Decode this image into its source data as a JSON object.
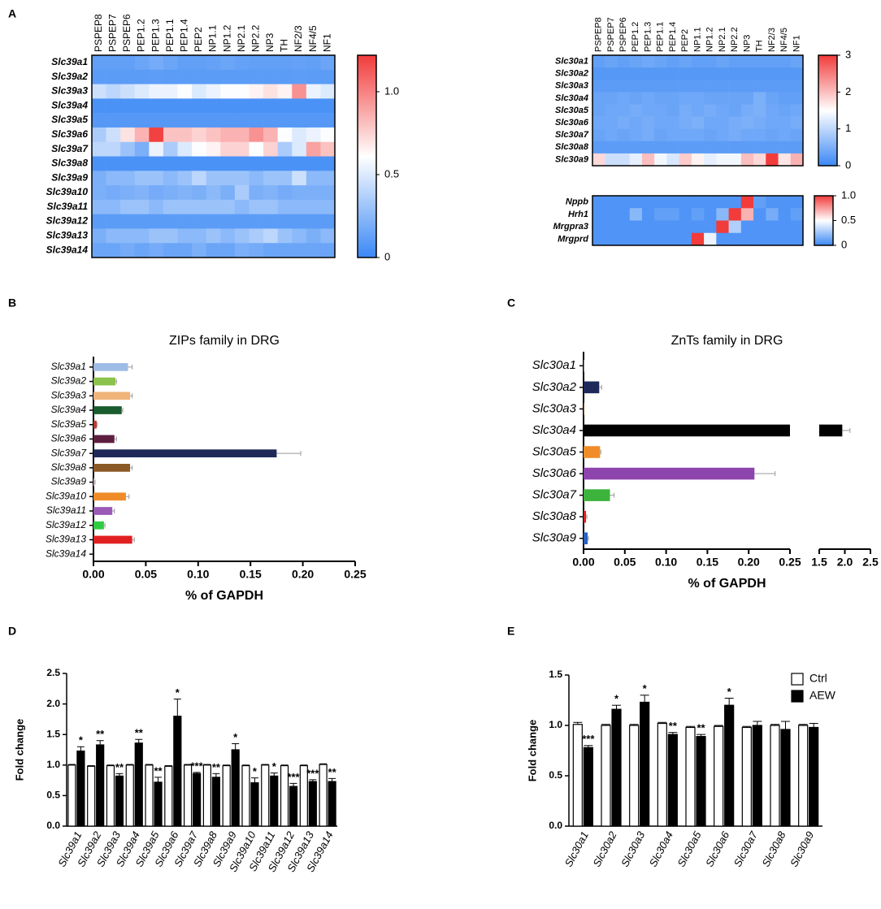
{
  "panel_labels": [
    "A",
    "B",
    "C",
    "D",
    "E"
  ],
  "chart_data": [
    {
      "type": "heatmap",
      "x": [
        "PSPEP8",
        "PSPEP7",
        "PSPEP6",
        "PEP1.2",
        "PEP1.3",
        "PEP1.1",
        "PEP1.4",
        "PEP2",
        "NP1.1",
        "NP1.2",
        "NP2.1",
        "NP2.2",
        "NP3",
        "TH",
        "NF2/3",
        "NF4/5",
        "NF1"
      ],
      "y": [
        "Slc39a1",
        "Slc39a2",
        "Slc39a3",
        "Slc39a4",
        "Slc39a5",
        "Slc39a6",
        "Slc39a7",
        "Slc39a8",
        "Slc39a9",
        "Slc39a10",
        "Slc39a11",
        "Slc39a12",
        "Slc39a13",
        "Slc39a14"
      ],
      "z": [
        [
          0.12,
          0.12,
          0.12,
          0.15,
          0.18,
          0.15,
          0.12,
          0.12,
          0.13,
          0.15,
          0.13,
          0.12,
          0.12,
          0.12,
          0.13,
          0.12,
          0.15
        ],
        [
          0.1,
          0.1,
          0.1,
          0.1,
          0.11,
          0.1,
          0.1,
          0.1,
          0.1,
          0.1,
          0.1,
          0.1,
          0.1,
          0.1,
          0.11,
          0.1,
          0.1
        ],
        [
          0.45,
          0.4,
          0.45,
          0.5,
          0.55,
          0.55,
          0.6,
          0.5,
          0.55,
          0.6,
          0.6,
          0.65,
          0.7,
          0.65,
          0.95,
          0.55,
          0.5
        ],
        [
          0.05,
          0.05,
          0.05,
          0.05,
          0.05,
          0.05,
          0.05,
          0.05,
          0.05,
          0.05,
          0.05,
          0.05,
          0.05,
          0.05,
          0.05,
          0.05,
          0.05
        ],
        [
          0.08,
          0.08,
          0.08,
          0.08,
          0.08,
          0.08,
          0.08,
          0.08,
          0.08,
          0.08,
          0.08,
          0.08,
          0.08,
          0.08,
          0.08,
          0.08,
          0.08
        ],
        [
          0.35,
          0.45,
          0.7,
          0.85,
          1.2,
          0.8,
          0.8,
          0.75,
          0.8,
          0.85,
          0.85,
          0.95,
          0.85,
          0.6,
          0.5,
          0.55,
          0.6
        ],
        [
          0.4,
          0.4,
          0.3,
          0.2,
          0.55,
          0.35,
          0.5,
          0.6,
          0.65,
          0.75,
          0.75,
          0.6,
          0.75,
          0.35,
          0.5,
          0.9,
          0.8
        ],
        [
          0.05,
          0.05,
          0.05,
          0.05,
          0.05,
          0.05,
          0.05,
          0.05,
          0.05,
          0.05,
          0.05,
          0.05,
          0.05,
          0.05,
          0.05,
          0.05,
          0.05
        ],
        [
          0.2,
          0.25,
          0.25,
          0.3,
          0.3,
          0.25,
          0.3,
          0.4,
          0.3,
          0.3,
          0.3,
          0.25,
          0.3,
          0.3,
          0.45,
          0.25,
          0.25
        ],
        [
          0.2,
          0.18,
          0.2,
          0.22,
          0.18,
          0.2,
          0.22,
          0.2,
          0.25,
          0.2,
          0.35,
          0.2,
          0.22,
          0.18,
          0.2,
          0.2,
          0.2
        ],
        [
          0.25,
          0.25,
          0.3,
          0.3,
          0.25,
          0.3,
          0.3,
          0.3,
          0.3,
          0.3,
          0.25,
          0.3,
          0.3,
          0.25,
          0.25,
          0.25,
          0.25
        ],
        [
          0.1,
          0.1,
          0.1,
          0.1,
          0.1,
          0.1,
          0.1,
          0.1,
          0.1,
          0.1,
          0.1,
          0.1,
          0.1,
          0.1,
          0.1,
          0.1,
          0.1
        ],
        [
          0.2,
          0.25,
          0.25,
          0.25,
          0.3,
          0.3,
          0.25,
          0.25,
          0.3,
          0.25,
          0.3,
          0.35,
          0.4,
          0.3,
          0.25,
          0.2,
          0.25
        ],
        [
          0.15,
          0.15,
          0.18,
          0.15,
          0.18,
          0.15,
          0.15,
          0.2,
          0.15,
          0.15,
          0.2,
          0.18,
          0.15,
          0.15,
          0.15,
          0.15,
          0.15
        ]
      ],
      "zlim": [
        0,
        1.22
      ],
      "zticks": [
        0,
        0.5,
        {
          "value": 1,
          "label": "1.0"
        }
      ],
      "colormap": [
        "#3b88f5",
        "#ffffff",
        "#f23b3b"
      ]
    },
    {
      "type": "heatmap",
      "x": [
        "PSPEP8",
        "PSPEP7",
        "PSPEP6",
        "PEP1.2",
        "PEP1.3",
        "PEP1.1",
        "PEP1.4",
        "PEP2",
        "NP1.1",
        "NP1.2",
        "NP2.1",
        "NP2.2",
        "NP3",
        "TH",
        "NF2/3",
        "NF4/5",
        "NF1"
      ],
      "y": [
        "Slc30a1",
        "Slc30a2",
        "Slc30a3",
        "Slc30a4",
        "Slc30a5",
        "Slc30a6",
        "Slc30a7",
        "Slc30a8",
        "Slc30a9"
      ],
      "z": [
        [
          0.3,
          0.35,
          0.3,
          0.35,
          0.4,
          0.35,
          0.3,
          0.35,
          0.3,
          0.3,
          0.35,
          0.3,
          0.3,
          0.3,
          0.3,
          0.3,
          0.35
        ],
        [
          0.2,
          0.2,
          0.2,
          0.2,
          0.2,
          0.2,
          0.2,
          0.2,
          0.2,
          0.2,
          0.2,
          0.2,
          0.2,
          0.2,
          0.2,
          0.2,
          0.2
        ],
        [
          0.25,
          0.25,
          0.25,
          0.25,
          0.25,
          0.25,
          0.25,
          0.25,
          0.25,
          0.25,
          0.25,
          0.25,
          0.25,
          0.25,
          0.25,
          0.25,
          0.25
        ],
        [
          0.35,
          0.35,
          0.4,
          0.35,
          0.4,
          0.35,
          0.35,
          0.4,
          0.4,
          0.35,
          0.35,
          0.35,
          0.35,
          0.5,
          0.35,
          0.3,
          0.3
        ],
        [
          0.35,
          0.4,
          0.4,
          0.45,
          0.4,
          0.4,
          0.35,
          0.45,
          0.4,
          0.45,
          0.4,
          0.35,
          0.45,
          0.5,
          0.4,
          0.35,
          0.4
        ],
        [
          0.4,
          0.4,
          0.45,
          0.4,
          0.45,
          0.4,
          0.4,
          0.45,
          0.5,
          0.4,
          0.4,
          0.45,
          0.5,
          0.45,
          0.4,
          0.4,
          0.45
        ],
        [
          0.35,
          0.4,
          0.35,
          0.4,
          0.45,
          0.35,
          0.4,
          0.4,
          0.4,
          0.35,
          0.4,
          0.45,
          0.4,
          0.4,
          0.35,
          0.4,
          0.35
        ],
        [
          0.25,
          0.25,
          0.25,
          0.25,
          0.25,
          0.25,
          0.25,
          0.25,
          0.25,
          0.25,
          0.25,
          0.25,
          0.25,
          0.25,
          0.25,
          0.25,
          0.25
        ],
        [
          1.8,
          1.1,
          1.1,
          1.3,
          2.0,
          1.4,
          1.2,
          1.9,
          1.6,
          1.3,
          1.4,
          1.4,
          2.0,
          1.8,
          3.0,
          1.7,
          2.1
        ]
      ],
      "zlim": [
        0,
        3
      ],
      "zticks": [
        0,
        1,
        2,
        3
      ],
      "colormap": [
        "#3b88f5",
        "#ffffff",
        "#f23b3b"
      ]
    },
    {
      "type": "heatmap",
      "y": [
        "Nppb",
        "Hrh1",
        "Mrgpra3",
        "Mrgprd"
      ],
      "z": [
        [
          0.05,
          0.05,
          0.05,
          0.05,
          0.05,
          0.05,
          0.05,
          0.05,
          0.05,
          0.05,
          0.05,
          0.05,
          1.0,
          0.1,
          0.05,
          0.05,
          0.05
        ],
        [
          0.05,
          0.05,
          0.05,
          0.2,
          0.05,
          0.1,
          0.1,
          0.05,
          0.1,
          0.05,
          0.2,
          1.0,
          0.7,
          0.05,
          0.15,
          0.05,
          0.1
        ],
        [
          0.05,
          0.05,
          0.05,
          0.05,
          0.05,
          0.05,
          0.05,
          0.05,
          0.05,
          0.05,
          1.0,
          0.3,
          0.05,
          0.05,
          0.05,
          0.05,
          0.05
        ],
        [
          0.05,
          0.05,
          0.05,
          0.05,
          0.05,
          0.05,
          0.05,
          0.05,
          1.0,
          0.45,
          0.05,
          0.05,
          0.05,
          0.05,
          0.05,
          0.05,
          0.05
        ]
      ],
      "zlim": [
        0,
        1
      ],
      "zticks": [
        0,
        0.5,
        {
          "value": 1,
          "label": "1.0"
        }
      ],
      "colormap": [
        "#3b88f5",
        "#ffffff",
        "#f23b3b"
      ]
    },
    {
      "type": "hbar",
      "title": "ZIPs family in DRG",
      "xlabel": "% of GAPDH",
      "categories": [
        "Slc39a1",
        "Slc39a2",
        "Slc39a3",
        "Slc39a4",
        "Slc39a5",
        "Slc39a6",
        "Slc39a7",
        "Slc39a8",
        "Slc39a9",
        "Slc39a10",
        "Slc39a11",
        "Slc39a12",
        "Slc39a13",
        "Slc39a14"
      ],
      "values": [
        0.033,
        0.021,
        0.035,
        0.027,
        0.003,
        0.02,
        0.175,
        0.035,
        0.001,
        0.031,
        0.018,
        0.01,
        0.037,
        0
      ],
      "errors": [
        0.004,
        0.001,
        0.002,
        0.001,
        0.0005,
        0.002,
        0.023,
        0.002,
        0.0005,
        0.003,
        0.002,
        0.001,
        0.002,
        0
      ],
      "colors": [
        "#9dbde6",
        "#8bc34a",
        "#f0b47a",
        "#1a5c2e",
        "#c0392b",
        "#5e1f3f",
        "#1f2a5a",
        "#8c5a26",
        "#c9a0c0",
        "#f08c28",
        "#9b59b6",
        "#2ecc40",
        "#e02020",
        "#1f4fa8"
      ],
      "xlim": [
        0,
        0.25
      ],
      "xticks": [
        {
          "value": 0,
          "label": "0.00"
        },
        0.05,
        {
          "value": 0.1,
          "label": "0.10"
        },
        0.15,
        {
          "value": 0.2,
          "label": "0.20"
        },
        0.25
      ]
    },
    {
      "type": "hbar",
      "title": "ZnTs family in DRG",
      "xlabel": "% of GAPDH",
      "categories": [
        "Slc30a1",
        "Slc30a2",
        "Slc30a3",
        "Slc30a4",
        "Slc30a5",
        "Slc30a6",
        "Slc30a7",
        "Slc30a8",
        "Slc30a9"
      ],
      "values": [
        0.001,
        0.019,
        0.001,
        1.95,
        0.02,
        0.207,
        0.032,
        0.003,
        0.005
      ],
      "errors": [
        0,
        0.003,
        0,
        0.15,
        0.001,
        0.025,
        0.005,
        0.001,
        0.001
      ],
      "colors": [
        "#7f7f7f",
        "#1f2a5a",
        "#8c5a26",
        "#000000",
        "#f08c28",
        "#8e44ad",
        "#3cb43c",
        "#e02020",
        "#2860c0"
      ],
      "xlim": [
        0,
        2.5
      ],
      "xbreak": [
        0.25,
        1.5
      ],
      "xticks": [
        {
          "value": 0,
          "label": "0.00"
        },
        0.05,
        {
          "value": 0.1,
          "label": "0.10"
        },
        0.15,
        {
          "value": 0.2,
          "label": "0.20"
        },
        0.25,
        1.5,
        {
          "value": 2,
          "label": "2.0"
        },
        2.5
      ]
    },
    {
      "type": "grouped_bar",
      "ylabel": "Fold change",
      "categories": [
        "Slc39a1",
        "Slc39a2",
        "Slc39a3",
        "Slc39a4",
        "Slc39a5",
        "Slc39a6",
        "Slc39a7",
        "Slc39a8",
        "Slc39a9",
        "Slc39a10",
        "Slc39a11",
        "Slc39a12",
        "Slc39a13",
        "Slc39a14"
      ],
      "series": [
        {
          "color": "#ffffff",
          "values": [
            1.0,
            0.98,
            0.99,
            1.0,
            1.0,
            0.98,
            1.0,
            1.0,
            0.99,
            0.99,
            1.0,
            0.99,
            0.99,
            1.01
          ],
          "errors": [
            0.01,
            0.01,
            0.01,
            0.01,
            0.01,
            0.01,
            0.01,
            0.01,
            0.01,
            0.01,
            0.01,
            0.01,
            0.01,
            0.01
          ]
        },
        {
          "color": "#000000",
          "values": [
            1.23,
            1.33,
            0.82,
            1.36,
            0.72,
            1.8,
            0.86,
            0.8,
            1.25,
            0.71,
            0.82,
            0.65,
            0.73,
            0.73
          ],
          "errors": [
            0.07,
            0.07,
            0.04,
            0.06,
            0.08,
            0.28,
            0.02,
            0.06,
            0.1,
            0.08,
            0.05,
            0.05,
            0.03,
            0.05
          ]
        }
      ],
      "significance": [
        "*",
        "**",
        "**",
        "**",
        "**",
        "*",
        "***",
        "**",
        "*",
        "*",
        "*",
        "***",
        "***",
        "**"
      ],
      "ylim": [
        0,
        2.5
      ],
      "yticks": [
        {
          "value": 0,
          "label": "0.0"
        },
        0.5,
        {
          "value": 1,
          "label": "1.0"
        },
        1.5,
        {
          "value": 2,
          "label": "2.0"
        },
        2.5
      ]
    },
    {
      "type": "grouped_bar",
      "ylabel": "Fold change",
      "legend": "top-right",
      "categories": [
        "Slc30a1",
        "Slc30a2",
        "Slc30a3",
        "Slc30a4",
        "Slc30a5",
        "Slc30a6",
        "Slc30a7",
        "Slc30a8",
        "Slc30a9"
      ],
      "series": [
        {
          "name": "Ctrl",
          "color": "#ffffff",
          "values": [
            1.01,
            1.0,
            1.0,
            1.02,
            0.98,
            0.99,
            0.98,
            1.0,
            1.0
          ],
          "errors": [
            0.02,
            0.01,
            0.01,
            0.01,
            0.01,
            0.01,
            0.01,
            0.01,
            0.01
          ]
        },
        {
          "name": "AEW",
          "color": "#000000",
          "values": [
            0.78,
            1.16,
            1.23,
            0.91,
            0.89,
            1.2,
            1.0,
            0.96,
            0.98
          ],
          "errors": [
            0.02,
            0.04,
            0.07,
            0.02,
            0.02,
            0.07,
            0.04,
            0.08,
            0.04
          ]
        }
      ],
      "significance": [
        "***",
        "*",
        "*",
        "**",
        "**",
        "*",
        null,
        null,
        null
      ],
      "ylim": [
        0,
        1.5
      ],
      "yticks": [
        {
          "value": 0,
          "label": "0.0"
        },
        0.5,
        {
          "value": 1,
          "label": "1.0"
        },
        1.5
      ]
    }
  ]
}
